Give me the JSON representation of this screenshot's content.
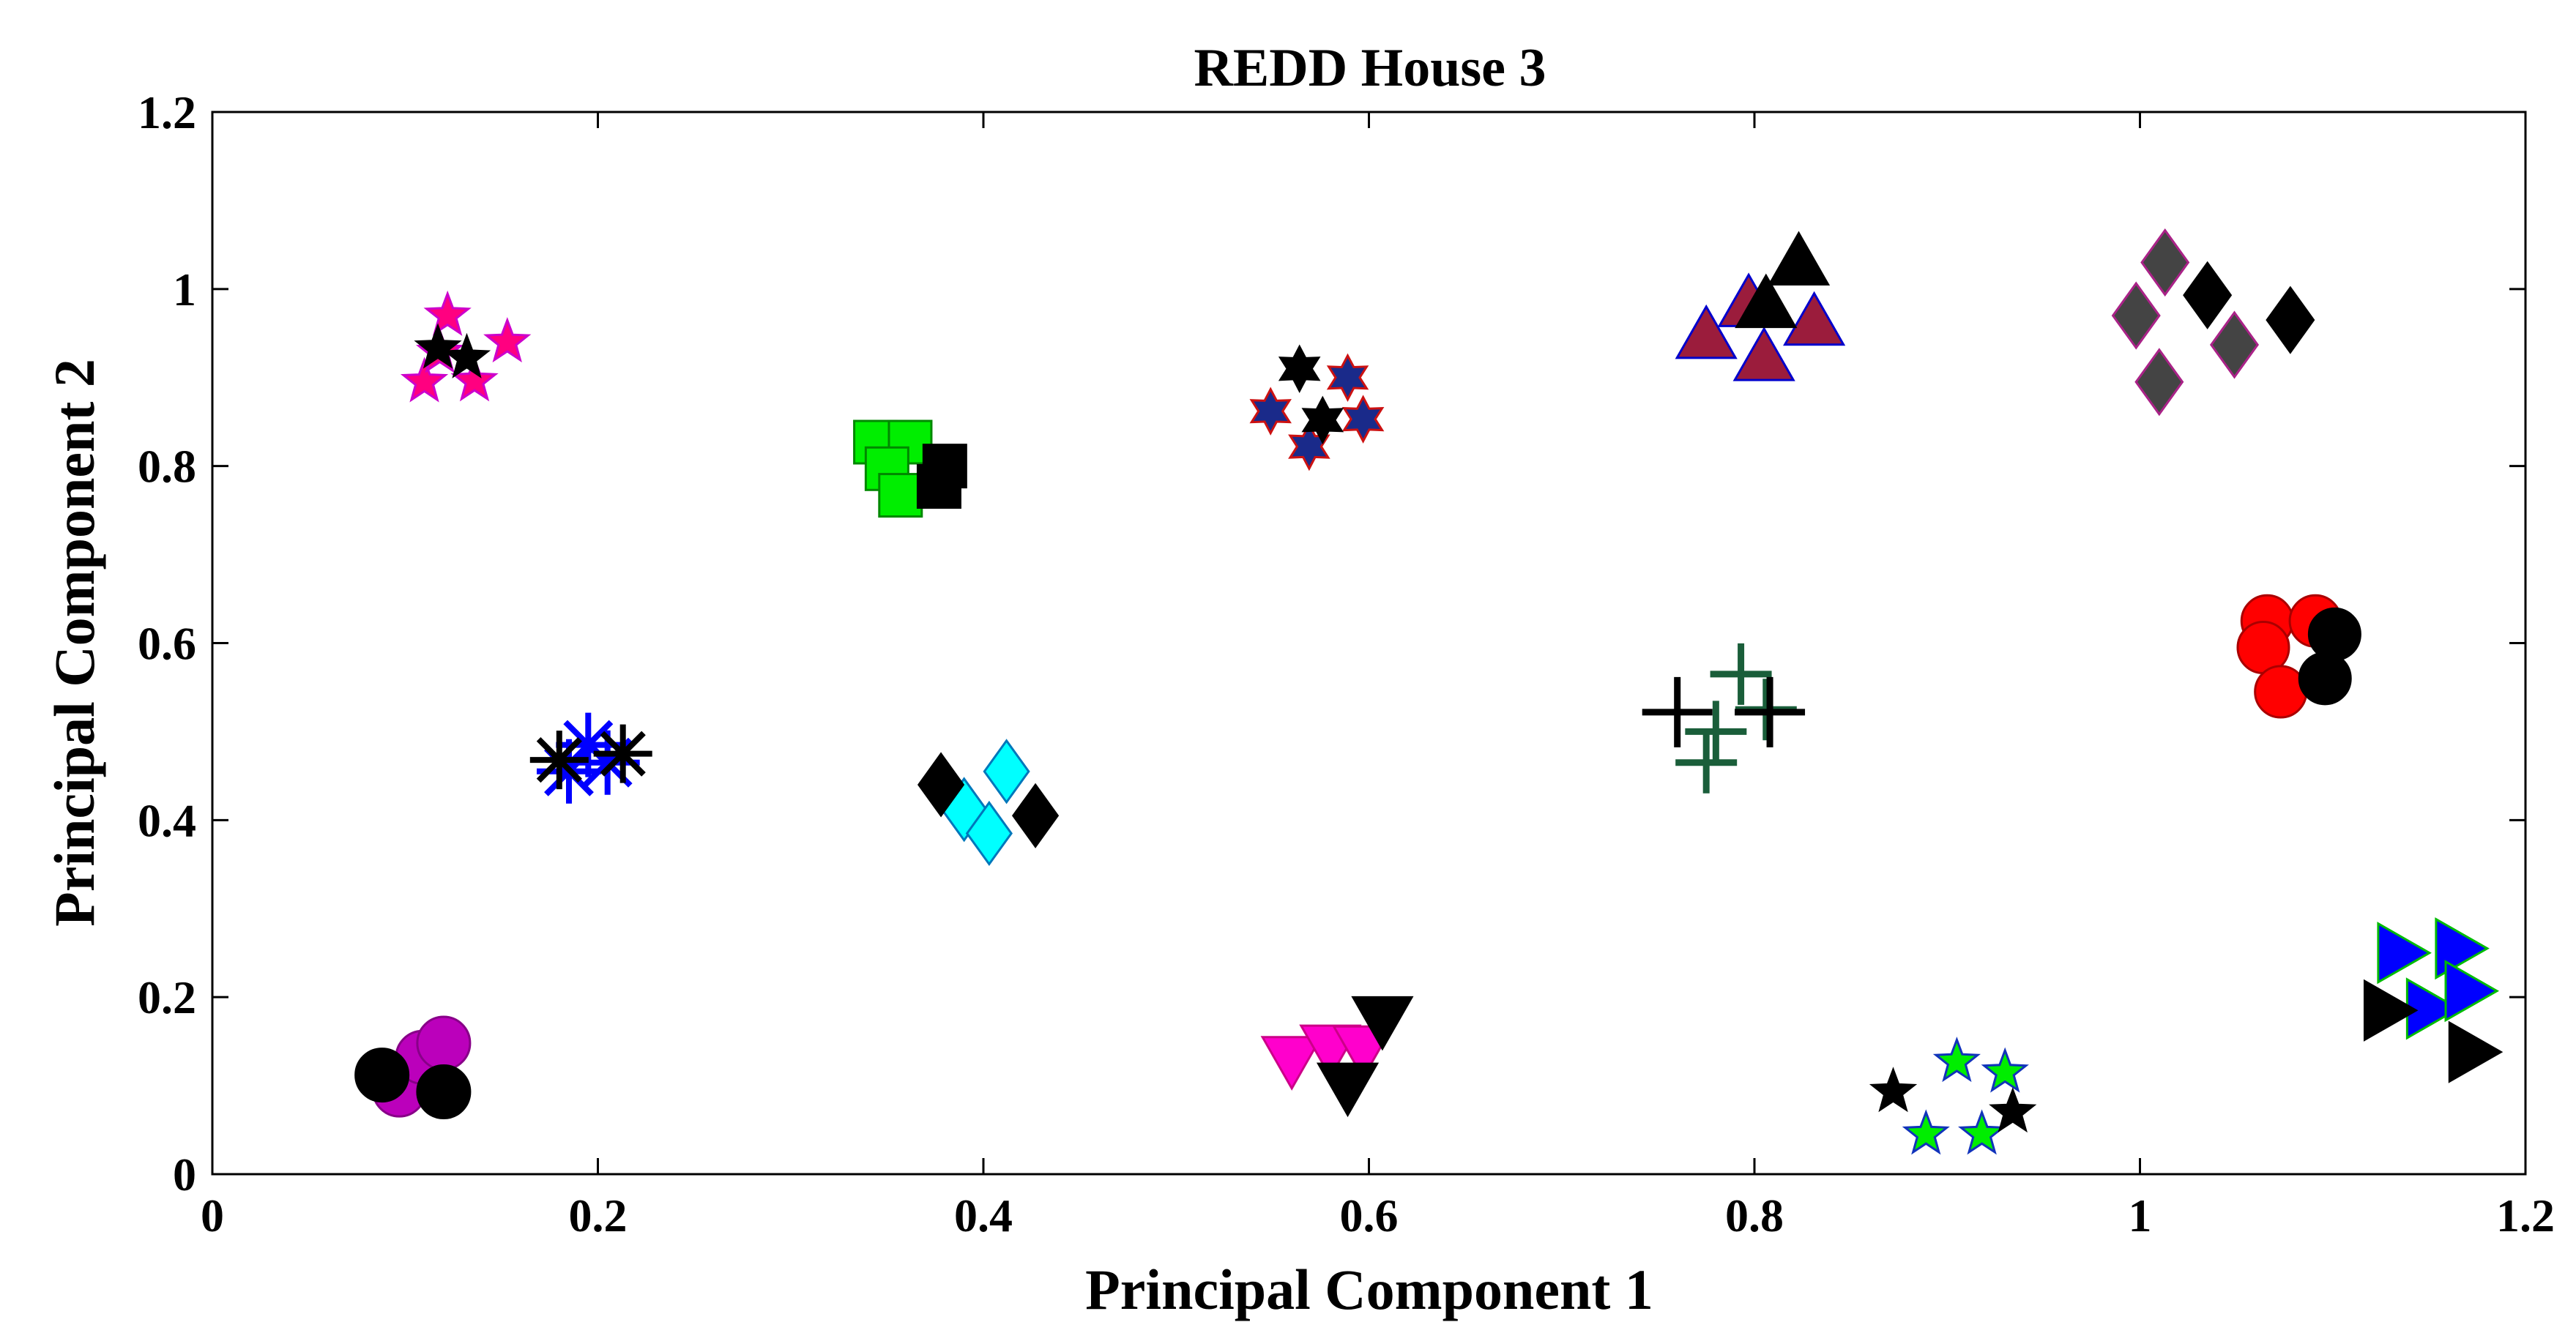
{
  "chart_data": {
    "type": "scatter",
    "title": "REDD House 3",
    "xlabel": "Principal Component 1",
    "ylabel": "Principal Component 2",
    "xlim": [
      0,
      1.2
    ],
    "ylim": [
      0,
      1.2
    ],
    "xticks": [
      "0",
      "0.2",
      "0.4",
      "0.6",
      "0.8",
      "1",
      "1.2"
    ],
    "yticks": [
      "0",
      "0.2",
      "0.4",
      "0.6",
      "0.8",
      "1",
      "1.2"
    ],
    "grid": false,
    "legend": false,
    "series": [
      {
        "marker": "star5",
        "fill": "#ff0080",
        "stroke": "#cc00cc",
        "size": 30,
        "points": [
          [
            0.122,
            0.97
          ],
          [
            0.153,
            0.94
          ],
          [
            0.11,
            0.895
          ],
          [
            0.136,
            0.896
          ],
          [
            0.118,
            0.928
          ]
        ]
      },
      {
        "marker": "star5",
        "fill": "#000000",
        "stroke": "#000000",
        "size": 30,
        "points": [
          [
            0.117,
            0.933
          ],
          [
            0.132,
            0.922
          ]
        ]
      },
      {
        "marker": "square",
        "fill": "#00ee00",
        "stroke": "#008800",
        "size": 29,
        "points": [
          [
            0.344,
            0.827
          ],
          [
            0.362,
            0.827
          ],
          [
            0.35,
            0.797
          ],
          [
            0.357,
            0.767
          ]
        ]
      },
      {
        "marker": "square",
        "fill": "#000000",
        "stroke": "#000000",
        "size": 29,
        "points": [
          [
            0.38,
            0.8
          ],
          [
            0.377,
            0.777
          ]
        ]
      },
      {
        "marker": "star6",
        "fill": "#1a2a8a",
        "stroke": "#cc1111",
        "size": 30,
        "points": [
          [
            0.589,
            0.9
          ],
          [
            0.549,
            0.862
          ],
          [
            0.597,
            0.853
          ],
          [
            0.569,
            0.822
          ]
        ]
      },
      {
        "marker": "star6",
        "fill": "#000000",
        "stroke": "#000000",
        "size": 30,
        "points": [
          [
            0.564,
            0.91
          ],
          [
            0.576,
            0.852
          ]
        ]
      },
      {
        "marker": "triangle-up",
        "fill": "#9b1c3c",
        "stroke": "#0000cc",
        "size": 40,
        "points": [
          [
            0.797,
            0.983
          ],
          [
            0.775,
            0.947
          ],
          [
            0.831,
            0.962
          ],
          [
            0.805,
            0.922
          ]
        ]
      },
      {
        "marker": "triangle-up",
        "fill": "#000000",
        "stroke": "#000000",
        "size": 40,
        "points": [
          [
            0.823,
            1.03
          ],
          [
            0.806,
            0.982
          ]
        ]
      },
      {
        "marker": "diamond",
        "fill": "#444444",
        "stroke": "#aa2288",
        "size": 44,
        "points": [
          [
            1.013,
            1.03
          ],
          [
            0.998,
            0.97
          ],
          [
            1.049,
            0.937
          ],
          [
            1.01,
            0.895
          ]
        ]
      },
      {
        "marker": "diamond",
        "fill": "#000000",
        "stroke": "#000000",
        "size": 44,
        "points": [
          [
            1.035,
            0.993
          ],
          [
            1.078,
            0.965
          ]
        ]
      },
      {
        "marker": "circle",
        "fill": "#ff0000",
        "stroke": "#aa0000",
        "size": 35,
        "points": [
          [
            1.066,
            0.625
          ],
          [
            1.091,
            0.625
          ],
          [
            1.064,
            0.595
          ],
          [
            1.073,
            0.545
          ]
        ]
      },
      {
        "marker": "circle",
        "fill": "#000000",
        "stroke": "#000000",
        "size": 35,
        "points": [
          [
            1.101,
            0.61
          ],
          [
            1.096,
            0.56
          ]
        ]
      },
      {
        "marker": "plus",
        "fill": "none",
        "stroke": "#1a5e3a",
        "size": 42,
        "points": [
          [
            0.793,
            0.565
          ],
          [
            0.806,
            0.525
          ],
          [
            0.78,
            0.5
          ],
          [
            0.775,
            0.465
          ]
        ]
      },
      {
        "marker": "plus",
        "fill": "none",
        "stroke": "#000000",
        "size": 48,
        "points": [
          [
            0.76,
            0.522
          ],
          [
            0.808,
            0.522
          ]
        ]
      },
      {
        "marker": "asterisk",
        "fill": "none",
        "stroke": "#0000ff",
        "size": 44,
        "points": [
          [
            0.195,
            0.485
          ],
          [
            0.185,
            0.455
          ],
          [
            0.205,
            0.465
          ]
        ]
      },
      {
        "marker": "asterisk",
        "fill": "none",
        "stroke": "#000000",
        "size": 40,
        "points": [
          [
            0.18,
            0.468
          ],
          [
            0.213,
            0.475
          ]
        ]
      },
      {
        "marker": "diamond",
        "fill": "#00ffff",
        "stroke": "#0077bb",
        "size": 42,
        "points": [
          [
            0.412,
            0.455
          ],
          [
            0.39,
            0.412
          ],
          [
            0.403,
            0.385
          ]
        ]
      },
      {
        "marker": "diamond",
        "fill": "#000000",
        "stroke": "#000000",
        "size": 42,
        "points": [
          [
            0.378,
            0.44
          ],
          [
            0.427,
            0.405
          ]
        ]
      },
      {
        "marker": "circle",
        "fill": "#bb00bb",
        "stroke": "#880088",
        "size": 36,
        "points": [
          [
            0.097,
            0.095
          ],
          [
            0.109,
            0.132
          ],
          [
            0.12,
            0.148
          ]
        ]
      },
      {
        "marker": "circle",
        "fill": "#000000",
        "stroke": "#000000",
        "size": 36,
        "points": [
          [
            0.088,
            0.112
          ],
          [
            0.12,
            0.093
          ]
        ]
      },
      {
        "marker": "triangle-down",
        "fill": "#ff00cc",
        "stroke": "#cc0088",
        "size": 40,
        "points": [
          [
            0.56,
            0.13
          ],
          [
            0.58,
            0.143
          ],
          [
            0.597,
            0.142
          ]
        ]
      },
      {
        "marker": "triangle-down",
        "fill": "#000000",
        "stroke": "#000000",
        "size": 40,
        "points": [
          [
            0.607,
            0.175
          ],
          [
            0.589,
            0.1
          ]
        ]
      },
      {
        "marker": "star5",
        "fill": "#00ee00",
        "stroke": "#1133bb",
        "size": 30,
        "points": [
          [
            0.905,
            0.127
          ],
          [
            0.93,
            0.115
          ],
          [
            0.889,
            0.045
          ],
          [
            0.918,
            0.045
          ]
        ]
      },
      {
        "marker": "star5",
        "fill": "#000000",
        "stroke": "#000000",
        "size": 30,
        "points": [
          [
            0.872,
            0.093
          ],
          [
            0.934,
            0.07
          ]
        ]
      },
      {
        "marker": "triangle-right",
        "fill": "#0000ff",
        "stroke": "#00bb00",
        "size": 40,
        "points": [
          [
            1.135,
            0.25
          ],
          [
            1.165,
            0.255
          ],
          [
            1.15,
            0.187
          ],
          [
            1.17,
            0.207
          ]
        ]
      },
      {
        "marker": "triangle-right",
        "fill": "#000000",
        "stroke": "#000000",
        "size": 40,
        "points": [
          [
            1.128,
            0.185
          ],
          [
            1.172,
            0.138
          ]
        ]
      }
    ]
  }
}
